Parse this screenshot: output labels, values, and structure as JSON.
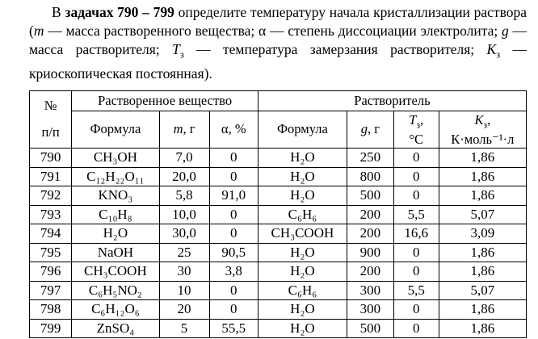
{
  "page": {
    "background": "#ffffff",
    "text_color": "#000000"
  },
  "intro": {
    "segments": [
      {
        "text": "В ",
        "style": "normal"
      },
      {
        "text": "задачах 790 – 799",
        "style": "bold"
      },
      {
        "text": " определите температуру начала кристаллизации раствора (",
        "style": "normal"
      },
      {
        "text": "m",
        "style": "italic"
      },
      {
        "text": " — масса растворенного вещества; α — степень диссоциации электролита; ",
        "style": "normal"
      },
      {
        "text": "g",
        "style": "italic"
      },
      {
        "text": " — масса растворителя; ",
        "style": "normal"
      },
      {
        "text": "T",
        "style": "italic"
      },
      {
        "text": "з",
        "style": "subscript"
      },
      {
        "text": " — температура замерзания растворителя; ",
        "style": "normal"
      },
      {
        "text": "K",
        "style": "italic"
      },
      {
        "text": "з",
        "style": "subscript"
      },
      {
        "text": " — криоскопическая постоянная).",
        "style": "normal"
      }
    ]
  },
  "table": {
    "group_headers": {
      "num_line1": "№",
      "num_line2": "п/п",
      "solute": "Растворенное вещество",
      "solvent": "Растворитель"
    },
    "col_headers": {
      "formula1": "Формула",
      "m_var": "m",
      "m_unit": ", г",
      "alpha": "α, %",
      "formula2": "Формула",
      "g_var": "g",
      "g_unit": ", г",
      "t_var": "T",
      "t_sub": "з",
      "t_comma": ",",
      "t_unit": "°С",
      "k_var": "K",
      "k_sub": "з",
      "k_comma": ",",
      "k_unit": "К·моль⁻¹·л"
    },
    "rows": [
      {
        "num": "790",
        "formula1": "CH₃OH",
        "m": "7,0",
        "alpha": "0",
        "formula2": "H₂O",
        "g": "250",
        "tz": "0",
        "kz": "1,86"
      },
      {
        "num": "791",
        "formula1": "C₁₂H₂₂O₁₁",
        "m": "20,0",
        "alpha": "0",
        "formula2": "H₂O",
        "g": "800",
        "tz": "0",
        "kz": "1,86"
      },
      {
        "num": "792",
        "formula1": "KNO₃",
        "m": "5,8",
        "alpha": "91,0",
        "formula2": "H₂O",
        "g": "500",
        "tz": "0",
        "kz": "1,86"
      },
      {
        "num": "793",
        "formula1": "C₁₀H₈",
        "m": "10,0",
        "alpha": "0",
        "formula2": "C₆H₆",
        "g": "200",
        "tz": "5,5",
        "kz": "5,07"
      },
      {
        "num": "794",
        "formula1": "H₂O",
        "m": "30,0",
        "alpha": "0",
        "formula2": "CH₃COOH",
        "g": "200",
        "tz": "16,6",
        "kz": "3,09"
      },
      {
        "num": "795",
        "formula1": "NaOH",
        "m": "25",
        "alpha": "90,5",
        "formula2": "H₂O",
        "g": "900",
        "tz": "0",
        "kz": "1,86"
      },
      {
        "num": "796",
        "formula1": "CH₃COOH",
        "m": "30",
        "alpha": "3,8",
        "formula2": "H₂O",
        "g": "200",
        "tz": "0",
        "kz": "1,86"
      },
      {
        "num": "797",
        "formula1": "C₆H₅NO₂",
        "m": "10",
        "alpha": "0",
        "formula2": "C₆H₆",
        "g": "300",
        "tz": "5,5",
        "kz": "5,07"
      },
      {
        "num": "798",
        "formula1": "C₆H₁₂O₆",
        "m": "20",
        "alpha": "0",
        "formula2": "H₂O",
        "g": "300",
        "tz": "0",
        "kz": "1,86"
      },
      {
        "num": "799",
        "formula1": "ZnSO₄",
        "m": "5",
        "alpha": "55,5",
        "formula2": "H₂O",
        "g": "500",
        "tz": "0",
        "kz": "1,86"
      }
    ]
  }
}
